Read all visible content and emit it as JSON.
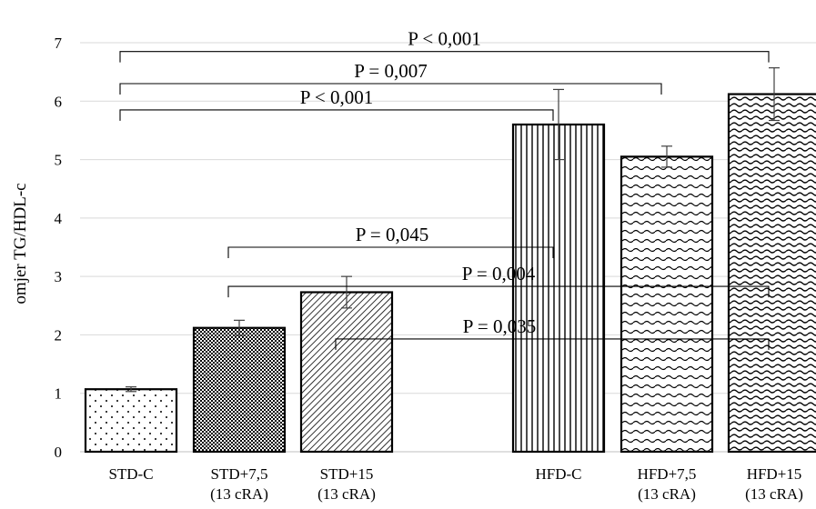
{
  "chart_data": {
    "type": "bar",
    "title": "",
    "xlabel": "",
    "ylabel": "omjer TG/HDL-c",
    "ylim": [
      0,
      7
    ],
    "yticks": [
      "0",
      "1",
      "2",
      "3",
      "4",
      "5",
      "6",
      "7"
    ],
    "grid": "horizontal",
    "categories": [
      [
        "STD-C"
      ],
      [
        "STD+7,5",
        "(13 cRA)"
      ],
      [
        "STD+15",
        "(13 cRA)"
      ],
      [
        "HFD-C"
      ],
      [
        "HFD+7,5",
        "(13 cRA)"
      ],
      [
        "HFD+15",
        "(13 cRA)"
      ]
    ],
    "values": [
      1.07,
      2.12,
      2.73,
      5.6,
      5.05,
      6.12
    ],
    "errors": [
      0.04,
      0.13,
      0.27,
      0.6,
      0.18,
      0.45
    ],
    "patterns": [
      "dots",
      "checker",
      "diagonal",
      "vertical",
      "waves-small",
      "waves"
    ],
    "annotations": [
      {
        "text": "P < 0,001",
        "from": 0,
        "to": 5,
        "y": 6.85
      },
      {
        "text": "P = 0,007",
        "from": 0,
        "to": 4,
        "y": 6.3
      },
      {
        "text": "P < 0,001",
        "from": 0,
        "to": 3,
        "y": 5.85
      },
      {
        "text": "P = 0,045",
        "from": 1,
        "to": 3,
        "y": 3.5
      },
      {
        "text": "P = 0,004",
        "from": 1,
        "to": 5,
        "y": 2.83
      },
      {
        "text": "P = 0,035",
        "from": 2,
        "to": 5,
        "y": 1.93
      }
    ]
  }
}
